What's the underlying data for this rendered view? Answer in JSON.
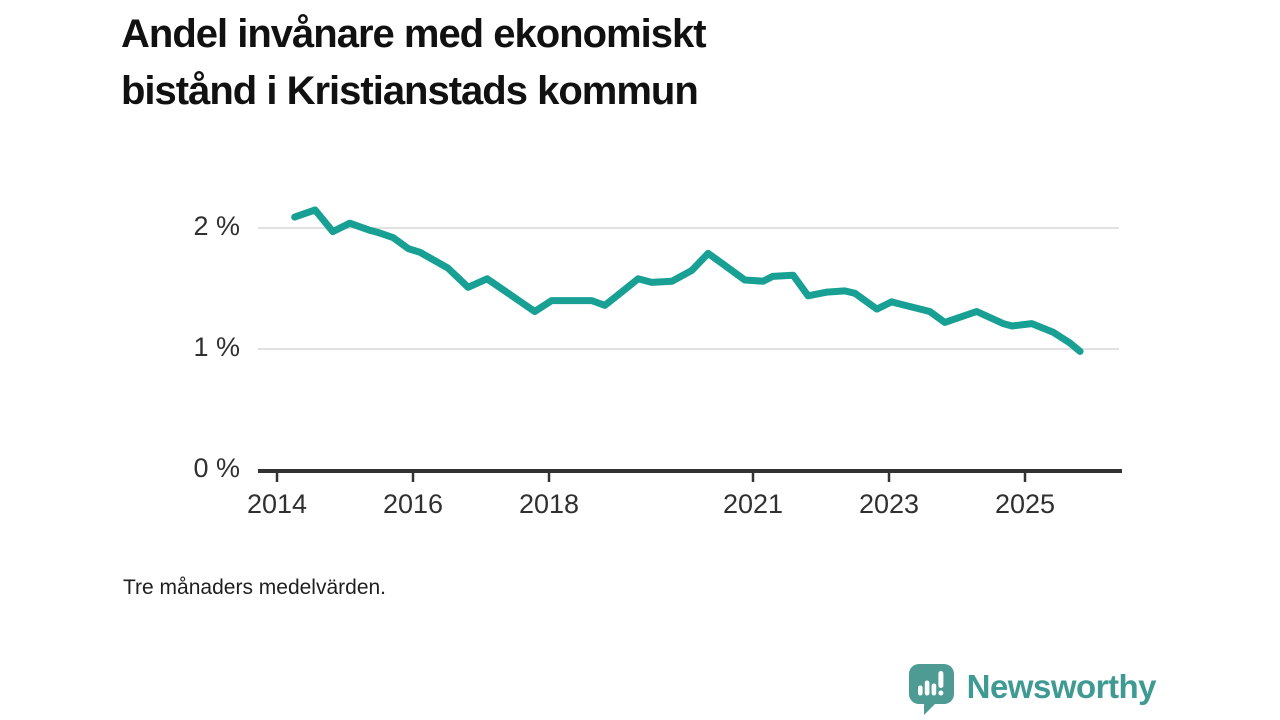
{
  "title": "Andel invånare med ekonomiskt bistånd i Kristianstads kommun",
  "title_lines": [
    "Andel invånare med ekonomiskt",
    "bistånd i Kristianstads kommun"
  ],
  "footnote": "Tre månaders medelvärden.",
  "logo": {
    "text": "Newsworthy",
    "icon": "bar-chart-speech-bubble-icon"
  },
  "colors": {
    "background": "#ffffff",
    "line": "#17A093",
    "grid": "#e1e1e1",
    "axis": "#333333",
    "title_text": "#111111",
    "tick_text": "#303030",
    "footnote_text": "#1f1f1f",
    "logo_bubble": "#4E9B93",
    "logo_text": "#3E9A92"
  },
  "chart_data": {
    "type": "line",
    "title": "Andel invånare med ekonomiskt bistånd i Kristianstads kommun",
    "subtitle": "Tre månaders medelvärden.",
    "xlabel": "",
    "ylabel": "",
    "unit": "%",
    "grid": "horizontal",
    "legend_position": "none",
    "x_range": [
      2013.72,
      2026.4
    ],
    "ylim": [
      0,
      2.3
    ],
    "yticks": [
      {
        "value": 0,
        "label": "0 %"
      },
      {
        "value": 1,
        "label": "1 %"
      },
      {
        "value": 2,
        "label": "2 %"
      }
    ],
    "xticks": [
      {
        "value": 2014,
        "label": "2014"
      },
      {
        "value": 2016,
        "label": "2016"
      },
      {
        "value": 2018,
        "label": "2018"
      },
      {
        "value": 2021,
        "label": "2021"
      },
      {
        "value": 2023,
        "label": "2023"
      },
      {
        "value": 2025,
        "label": "2025"
      }
    ],
    "series": [
      {
        "name": "Andel invånare med ekonomiskt bistånd",
        "points": [
          [
            2014.26,
            2.09
          ],
          [
            2014.56,
            2.15
          ],
          [
            2014.82,
            1.97
          ],
          [
            2015.07,
            2.04
          ],
          [
            2015.37,
            1.98
          ],
          [
            2015.5,
            1.96
          ],
          [
            2015.71,
            1.92
          ],
          [
            2015.93,
            1.83
          ],
          [
            2016.1,
            1.8
          ],
          [
            2016.51,
            1.67
          ],
          [
            2016.81,
            1.51
          ],
          [
            2017.09,
            1.58
          ],
          [
            2017.43,
            1.45
          ],
          [
            2017.79,
            1.31
          ],
          [
            2018.04,
            1.4
          ],
          [
            2018.3,
            1.4
          ],
          [
            2018.63,
            1.4
          ],
          [
            2018.82,
            1.36
          ],
          [
            2019.0,
            1.44
          ],
          [
            2019.31,
            1.58
          ],
          [
            2019.51,
            1.55
          ],
          [
            2019.81,
            1.56
          ],
          [
            2020.1,
            1.65
          ],
          [
            2020.34,
            1.79
          ],
          [
            2020.54,
            1.71
          ],
          [
            2020.88,
            1.57
          ],
          [
            2021.15,
            1.56
          ],
          [
            2021.29,
            1.6
          ],
          [
            2021.59,
            1.61
          ],
          [
            2021.81,
            1.44
          ],
          [
            2022.09,
            1.47
          ],
          [
            2022.35,
            1.48
          ],
          [
            2022.5,
            1.46
          ],
          [
            2022.82,
            1.33
          ],
          [
            2023.04,
            1.39
          ],
          [
            2023.1,
            1.38
          ],
          [
            2023.6,
            1.31
          ],
          [
            2023.82,
            1.22
          ],
          [
            2024.29,
            1.31
          ],
          [
            2024.68,
            1.21
          ],
          [
            2024.81,
            1.19
          ],
          [
            2025.1,
            1.21
          ],
          [
            2025.41,
            1.14
          ],
          [
            2025.66,
            1.05
          ],
          [
            2025.81,
            0.98
          ]
        ]
      }
    ]
  }
}
